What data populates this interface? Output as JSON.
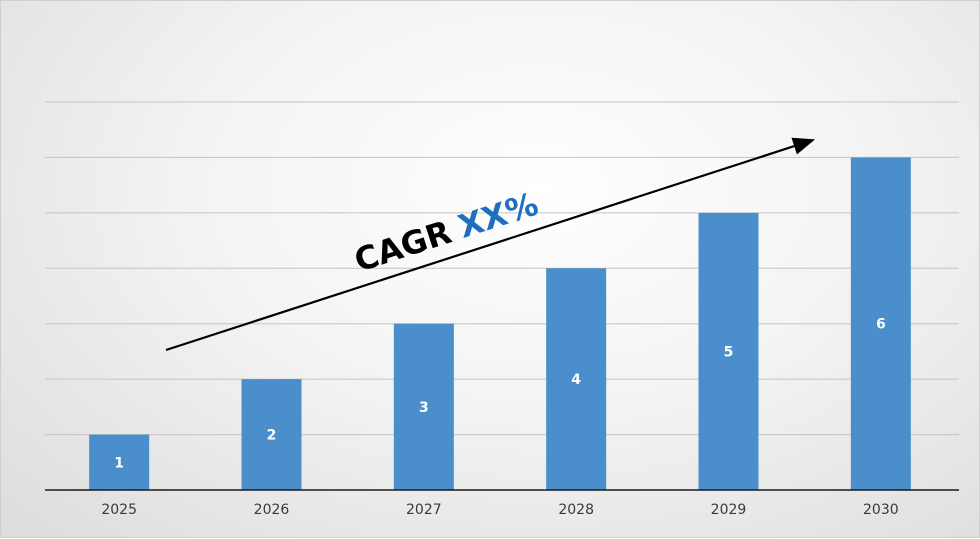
{
  "chart_data": {
    "type": "bar",
    "categories": [
      "2025",
      "2026",
      "2027",
      "2028",
      "2029",
      "2030"
    ],
    "values": [
      1,
      2,
      3,
      4,
      5,
      6
    ],
    "data_labels": [
      "1",
      "2",
      "3",
      "4",
      "5",
      "6"
    ],
    "ylim": [
      0,
      7
    ],
    "grid": true,
    "annotation": {
      "prefix": "CAGR",
      "value": "XX%",
      "arrow": "increasing-trend"
    },
    "bar_color": "#4a8ecb",
    "annotation_value_color": "#1f6fc0",
    "annotation_prefix_color": "#000000"
  }
}
